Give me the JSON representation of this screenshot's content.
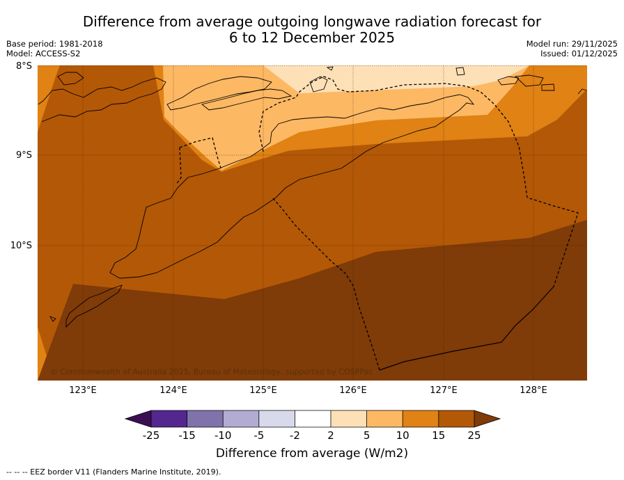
{
  "title_line1": "Difference from average outgoing longwave radiation forecast for",
  "title_line2": "6 to 12 December 2025",
  "base_period": "Base period: 1981-2018",
  "model": "Model: ACCESS-S2",
  "model_run": "Model run: 29/11/2025",
  "issued": "Issued: 01/12/2025",
  "map": {
    "lat_labels": [
      "8°S",
      "9°S",
      "10°S"
    ],
    "lon_labels": [
      "123°E",
      "124°E",
      "125°E",
      "126°E",
      "127°E",
      "128°E"
    ],
    "copyright": "© Commonwealth of Australia 2025, Bureau of Meteorology, supported by COSPPac"
  },
  "colorbar": {
    "ticks": [
      "-25",
      "-15",
      "-10",
      "-5",
      "-2",
      "2",
      "5",
      "10",
      "15",
      "25"
    ],
    "label": "Difference from average (W/m2)",
    "colors": {
      "lt_-25": "#3b0f52",
      "-25_-15": "#54278f",
      "-15_-10": "#8073ac",
      "-10_-5": "#b2abd2",
      "-5_-2": "#d8daeb",
      "-2_2": "#ffffff",
      "2_5": "#fee0b6",
      "5_10": "#fdb863",
      "10_15": "#e08214",
      "15_25": "#b35806",
      "gt_25": "#7f3b08"
    }
  },
  "footnote": "--  --  -- EEZ border V11 (Flanders Marine Institute, 2019)."
}
